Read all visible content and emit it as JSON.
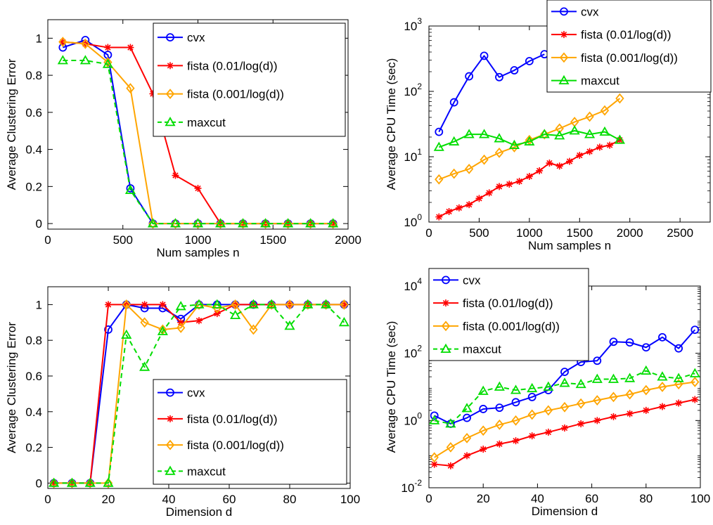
{
  "figure_title": "",
  "chart_data": [
    {
      "type": "line",
      "title": "",
      "xlabel": "Num samples n",
      "ylabel": "Average Clustering Error",
      "xlim": [
        0,
        2000
      ],
      "ylim": [
        -0.03,
        1.1
      ],
      "xticks": [
        0,
        500,
        1000,
        1500,
        2000
      ],
      "xtick_labels": [
        "0",
        "500",
        "1000",
        "1500",
        "2000"
      ],
      "yticks": [
        0,
        0.2,
        0.4,
        0.6,
        0.8,
        1
      ],
      "ytick_labels": [
        "0",
        "0.2",
        "0.4",
        "0.6",
        "0.8",
        "1"
      ],
      "yscale": "linear",
      "grid": false,
      "legend_position": "top-right",
      "x": [
        100,
        250,
        400,
        550,
        700,
        850,
        1000,
        1150,
        1300,
        1450,
        1600,
        1750,
        1900
      ],
      "series": [
        {
          "name": "cvx",
          "color": "#0000ff",
          "marker": "circle",
          "dash": "solid",
          "values": [
            0.95,
            0.99,
            0.91,
            0.19,
            0.0,
            0.0,
            0.0,
            0.0,
            0.0,
            0.0,
            0.0,
            0.0,
            0.0
          ]
        },
        {
          "name": "fista (0.01/log(d))",
          "color": "#ff0000",
          "marker": "star",
          "dash": "solid",
          "values": [
            0.98,
            0.97,
            0.95,
            0.95,
            0.7,
            0.26,
            0.19,
            0.0,
            0.0,
            0.0,
            0.0,
            0.0,
            0.0
          ]
        },
        {
          "name": "fista (0.001/log(d))",
          "color": "#ffa500",
          "marker": "diamond",
          "dash": "solid",
          "values": [
            0.98,
            0.97,
            0.87,
            0.73,
            0.0,
            0.0,
            0.0,
            0.0,
            0.0,
            0.0,
            0.0,
            0.0,
            0.0
          ]
        },
        {
          "name": "maxcut",
          "color": "#00dd00",
          "marker": "triangle",
          "dash": "dashed",
          "values": [
            0.88,
            0.88,
            0.86,
            0.18,
            0.0,
            0.0,
            0.0,
            0.0,
            0.0,
            0.0,
            0.0,
            0.0,
            0.0
          ]
        }
      ]
    },
    {
      "type": "line",
      "title": "",
      "xlabel": "Num samples n",
      "ylabel": "Average CPU Time (sec)",
      "xlim": [
        0,
        2800
      ],
      "ylim": [
        1,
        1000
      ],
      "xticks": [
        0,
        500,
        1000,
        1500,
        2000,
        2500
      ],
      "xtick_labels": [
        "0",
        "500",
        "1000",
        "1500",
        "2000",
        "2500"
      ],
      "yticks": [
        1,
        10,
        100,
        1000
      ],
      "ytick_labels": [
        {
          "base": "10",
          "exp": "0"
        },
        {
          "base": "10",
          "exp": "1"
        },
        {
          "base": "10",
          "exp": "2"
        },
        {
          "base": "10",
          "exp": "3"
        }
      ],
      "yscale": "log",
      "grid": false,
      "legend_position": "top-right",
      "series": [
        {
          "name": "cvx",
          "color": "#0000ff",
          "marker": "circle",
          "dash": "solid",
          "x": [
            100,
            250,
            400,
            550,
            700,
            850,
            1000,
            1150
          ],
          "values": [
            24,
            68,
            170,
            350,
            165,
            210,
            290,
            370
          ]
        },
        {
          "name": "fista (0.01/log(d))",
          "color": "#ff0000",
          "marker": "star",
          "dash": "solid",
          "x": [
            100,
            200,
            300,
            400,
            500,
            600,
            700,
            800,
            900,
            1000,
            1100,
            1200,
            1300,
            1400,
            1500,
            1600,
            1700,
            1800,
            1900
          ],
          "values": [
            1.2,
            1.45,
            1.65,
            1.85,
            2.3,
            2.8,
            3.5,
            3.8,
            4.2,
            5.0,
            6.1,
            8.0,
            7.2,
            8.5,
            10.5,
            12,
            14,
            15,
            18
          ]
        },
        {
          "name": "fista (0.001/log(d))",
          "color": "#ffa500",
          "marker": "diamond",
          "dash": "solid",
          "x": [
            100,
            250,
            400,
            550,
            700,
            850,
            1000,
            1150,
            1300,
            1450,
            1600,
            1750,
            1900
          ],
          "values": [
            4.5,
            5.5,
            6.5,
            9,
            11.5,
            14,
            18,
            22,
            27,
            34,
            41,
            51,
            78
          ]
        },
        {
          "name": "maxcut",
          "color": "#00dd00",
          "marker": "triangle",
          "dash": "solid",
          "x": [
            100,
            250,
            400,
            550,
            700,
            850,
            1000,
            1150,
            1300,
            1450,
            1600,
            1750,
            1900
          ],
          "values": [
            14,
            17,
            22,
            22,
            19,
            15,
            17,
            22,
            21,
            25,
            22,
            24,
            18
          ]
        }
      ]
    },
    {
      "type": "line",
      "title": "",
      "xlabel": "Dimension d",
      "ylabel": "Average Clustering Error",
      "xlim": [
        0,
        100
      ],
      "ylim": [
        -0.03,
        1.1
      ],
      "xticks": [
        0,
        20,
        40,
        60,
        80,
        100
      ],
      "xtick_labels": [
        "0",
        "20",
        "40",
        "60",
        "80",
        "100"
      ],
      "yticks": [
        0,
        0.2,
        0.4,
        0.6,
        0.8,
        1
      ],
      "ytick_labels": [
        "0",
        "0.2",
        "0.4",
        "0.6",
        "0.8",
        "1"
      ],
      "yscale": "linear",
      "grid": false,
      "legend_position": "bottom-right",
      "x": [
        2,
        8,
        14,
        20,
        26,
        32,
        38,
        44,
        50,
        56,
        62,
        68,
        74,
        80,
        86,
        92,
        98
      ],
      "series": [
        {
          "name": "cvx",
          "color": "#0000ff",
          "marker": "circle",
          "dash": "solid",
          "values": [
            0,
            0,
            0,
            0.86,
            1.0,
            0.98,
            0.98,
            0.92,
            1.0,
            1.0,
            1.0,
            1.0,
            1.0,
            1.0,
            1.0,
            1.0,
            1.0
          ]
        },
        {
          "name": "fista (0.01/log(d))",
          "color": "#ff0000",
          "marker": "star",
          "dash": "solid",
          "values": [
            0,
            0,
            0,
            1.0,
            1.0,
            1.0,
            1.0,
            0.9,
            0.91,
            0.95,
            1.0,
            1.0,
            1.0,
            1.0,
            1.0,
            1.0,
            1.0
          ]
        },
        {
          "name": "fista (0.001/log(d))",
          "color": "#ffa500",
          "marker": "diamond",
          "dash": "solid",
          "values": [
            0,
            0,
            0,
            0,
            1.0,
            0.9,
            0.86,
            0.87,
            1.0,
            0.98,
            1.0,
            0.86,
            1.0,
            1.0,
            1.0,
            1.0,
            1.0
          ]
        },
        {
          "name": "maxcut",
          "color": "#00dd00",
          "marker": "triangle",
          "dash": "dashed",
          "values": [
            0,
            0,
            0,
            0,
            0.83,
            0.65,
            0.85,
            0.99,
            1.0,
            1.0,
            0.94,
            1.0,
            1.0,
            0.88,
            1.0,
            1.0,
            0.9
          ]
        }
      ]
    },
    {
      "type": "line",
      "title": "",
      "xlabel": "Dimension d",
      "ylabel": "Average CPU Time (sec)",
      "xlim": [
        0,
        100
      ],
      "ylim": [
        0.01,
        10000
      ],
      "xticks": [
        0,
        20,
        40,
        60,
        80,
        100
      ],
      "xtick_labels": [
        "0",
        "20",
        "40",
        "60",
        "80",
        "100"
      ],
      "yticks": [
        0.01,
        1,
        100,
        10000
      ],
      "ytick_labels": [
        {
          "base": "10",
          "exp": "-2"
        },
        {
          "base": "10",
          "exp": "0"
        },
        {
          "base": "10",
          "exp": "2"
        },
        {
          "base": "10",
          "exp": "4"
        }
      ],
      "yscale": "log",
      "grid": false,
      "legend_position": "top-left",
      "x": [
        2,
        8,
        14,
        20,
        26,
        32,
        38,
        44,
        50,
        56,
        62,
        68,
        74,
        80,
        86,
        92,
        98
      ],
      "series": [
        {
          "name": "cvx",
          "color": "#0000ff",
          "marker": "circle",
          "dash": "solid",
          "values": [
            1.4,
            0.8,
            1.2,
            2.2,
            2.4,
            3.5,
            5,
            8,
            28,
            55,
            60,
            220,
            210,
            150,
            300,
            140,
            500
          ]
        },
        {
          "name": "fista (0.01/log(d))",
          "color": "#ff0000",
          "marker": "star",
          "dash": "solid",
          "values": [
            0.05,
            0.045,
            0.09,
            0.14,
            0.2,
            0.25,
            0.35,
            0.45,
            0.6,
            0.8,
            1.0,
            1.3,
            1.6,
            2.0,
            2.6,
            3.3,
            4.2
          ]
        },
        {
          "name": "fista (0.001/log(d))",
          "color": "#ffa500",
          "marker": "diamond",
          "dash": "solid",
          "values": [
            0.08,
            0.16,
            0.3,
            0.5,
            0.75,
            1.0,
            1.5,
            2.0,
            2.5,
            3.2,
            4.0,
            5,
            6,
            8,
            10,
            12,
            14
          ]
        },
        {
          "name": "maxcut",
          "color": "#00dd00",
          "marker": "triangle",
          "dash": "dashed",
          "values": [
            1.0,
            0.8,
            2.3,
            7.5,
            10,
            8,
            9,
            10,
            13,
            12,
            17,
            17,
            18,
            30,
            20,
            18,
            25
          ]
        }
      ]
    }
  ]
}
